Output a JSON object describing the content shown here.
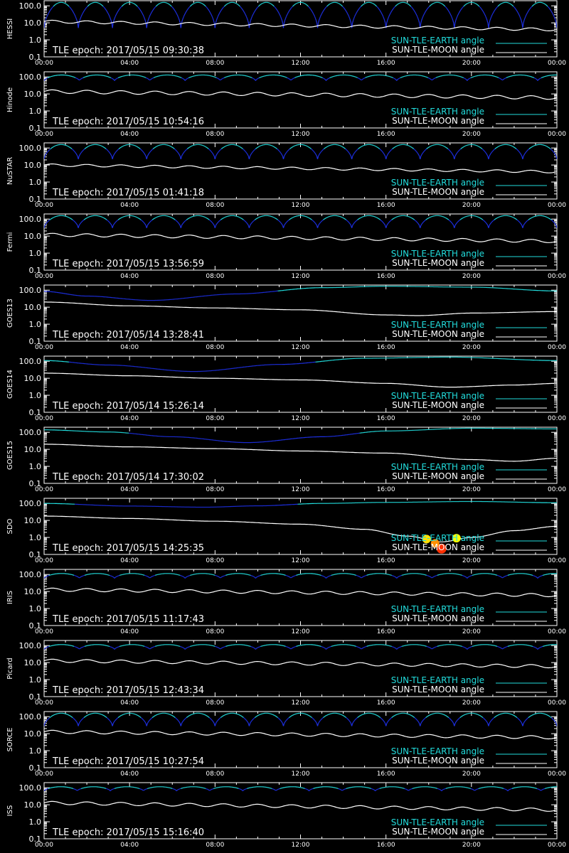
{
  "chart_data": [
    {
      "type": "line",
      "ylabel": "HESSI",
      "epoch": "TLE epoch: 2017/05/15 09:30:38",
      "earth": {
        "kind": "orbit",
        "period": 1.6,
        "min": 5,
        "max": 160
      },
      "moon": {
        "start": 12,
        "end": 4,
        "wobble": 0.08
      }
    },
    {
      "type": "line",
      "ylabel": "Hinode",
      "epoch": "TLE epoch: 2017/05/15 10:54:16",
      "earth": {
        "kind": "orbit",
        "period": 1.65,
        "min": 60,
        "max": 130
      },
      "moon": {
        "start": 14,
        "end": 6,
        "wobble": 0.1
      }
    },
    {
      "type": "line",
      "ylabel": "NuSTAR",
      "epoch": "TLE epoch: 2017/05/15 01:41:18",
      "earth": {
        "kind": "orbit",
        "period": 1.6,
        "min": 22,
        "max": 160
      },
      "moon": {
        "start": 10,
        "end": 4,
        "wobble": 0.07
      }
    },
    {
      "type": "line",
      "ylabel": "Fermi",
      "epoch": "TLE epoch: 2017/05/15 13:56:59",
      "earth": {
        "kind": "orbit",
        "period": 1.6,
        "min": 30,
        "max": 160
      },
      "moon": {
        "start": 12,
        "end": 5,
        "wobble": 0.09
      }
    },
    {
      "type": "line",
      "ylabel": "GOES13",
      "epoch": "TLE epoch: 2017/05/14 13:28:41",
      "earth": {
        "kind": "geo",
        "points": [
          [
            0,
            85
          ],
          [
            2,
            45
          ],
          [
            5,
            25
          ],
          [
            9,
            60
          ],
          [
            13,
            140
          ],
          [
            16,
            170
          ],
          [
            20,
            150
          ],
          [
            24,
            90
          ]
        ]
      },
      "moon": {
        "points": [
          [
            0,
            20
          ],
          [
            4,
            12
          ],
          [
            8,
            9
          ],
          [
            12,
            7
          ],
          [
            16,
            3.5
          ],
          [
            17.5,
            3.2
          ],
          [
            20,
            4.5
          ],
          [
            24,
            5.5
          ]
        ],
        "wobble": 0
      }
    },
    {
      "type": "line",
      "ylabel": "GOES14",
      "epoch": "TLE epoch: 2017/05/14 15:26:14",
      "earth": {
        "kind": "geo",
        "points": [
          [
            0,
            110
          ],
          [
            3,
            60
          ],
          [
            7,
            25
          ],
          [
            11,
            65
          ],
          [
            15,
            150
          ],
          [
            19,
            175
          ],
          [
            24,
            110
          ]
        ]
      },
      "moon": {
        "points": [
          [
            0,
            20
          ],
          [
            4,
            14
          ],
          [
            8,
            10
          ],
          [
            12,
            8
          ],
          [
            16,
            5
          ],
          [
            19,
            3
          ],
          [
            22,
            4
          ],
          [
            24,
            5
          ]
        ],
        "wobble": 0
      }
    },
    {
      "type": "line",
      "ylabel": "GOES15",
      "epoch": "TLE epoch: 2017/05/14 17:30:02",
      "earth": {
        "kind": "geo",
        "points": [
          [
            0,
            140
          ],
          [
            3,
            105
          ],
          [
            6,
            55
          ],
          [
            9.5,
            25
          ],
          [
            13,
            55
          ],
          [
            16,
            120
          ],
          [
            20,
            175
          ],
          [
            24,
            160
          ]
        ]
      },
      "moon": {
        "points": [
          [
            0,
            20
          ],
          [
            4,
            14
          ],
          [
            8,
            11
          ],
          [
            12,
            8
          ],
          [
            16,
            6
          ],
          [
            20,
            2.5
          ],
          [
            22,
            2
          ],
          [
            24,
            3
          ]
        ],
        "wobble": 0
      }
    },
    {
      "type": "line",
      "ylabel": "SDO",
      "epoch": "TLE epoch: 2017/05/15 14:25:35",
      "earth": {
        "kind": "geo",
        "points": [
          [
            0,
            100
          ],
          [
            4,
            70
          ],
          [
            7.5,
            60
          ],
          [
            10,
            72
          ],
          [
            13,
            100
          ],
          [
            16,
            115
          ],
          [
            20,
            130
          ],
          [
            24,
            110
          ]
        ]
      },
      "moon": {
        "points": [
          [
            0,
            18
          ],
          [
            4,
            13
          ],
          [
            8,
            9
          ],
          [
            12,
            6
          ],
          [
            15,
            3
          ],
          [
            17,
            1.2
          ],
          [
            18.6,
            0.55
          ],
          [
            20,
            1.0
          ],
          [
            22,
            2.5
          ],
          [
            24,
            4.5
          ]
        ],
        "wobble": 0
      },
      "highlight": [
        {
          "x": 18.6,
          "y": 0.22,
          "color": "#ff3000",
          "r": 7
        },
        {
          "x": 17.9,
          "y": 0.8,
          "color": "#ffe000",
          "r": 6
        },
        {
          "x": 19.3,
          "y": 0.9,
          "color": "#ffff00",
          "r": 6
        },
        {
          "x": 18.3,
          "y": 0.45,
          "color": "#ff9000",
          "r": 6
        }
      ]
    },
    {
      "type": "line",
      "ylabel": "IRIS",
      "epoch": "TLE epoch: 2017/05/15 11:17:43",
      "earth": {
        "kind": "orbit",
        "period": 1.65,
        "min": 60,
        "max": 115
      },
      "moon": {
        "start": 13,
        "end": 6,
        "wobble": 0.09
      }
    },
    {
      "type": "line",
      "ylabel": "Picard",
      "epoch": "TLE epoch: 2017/05/15 12:43:34",
      "earth": {
        "kind": "orbit",
        "period": 1.65,
        "min": 60,
        "max": 115
      },
      "moon": {
        "start": 13,
        "end": 6,
        "wobble": 0.09
      }
    },
    {
      "type": "line",
      "ylabel": "SORCE",
      "epoch": "TLE epoch: 2017/05/15 10:27:54",
      "earth": {
        "kind": "orbit",
        "period": 1.6,
        "min": 28,
        "max": 160
      },
      "moon": {
        "start": 13,
        "end": 6,
        "wobble": 0.09
      }
    },
    {
      "type": "line",
      "ylabel": "ISS",
      "epoch": "TLE epoch: 2017/05/15 15:16:40",
      "earth": {
        "kind": "orbit",
        "period": 1.55,
        "min": 65,
        "max": 115
      },
      "moon": {
        "start": 13,
        "end": 5,
        "wobble": 0.09
      }
    }
  ],
  "common": {
    "xticks": [
      "00:00",
      "04:00",
      "08:00",
      "12:00",
      "16:00",
      "20:00",
      "00:00"
    ],
    "yticks": [
      "100.0",
      "10.0",
      "1.0",
      "0.1"
    ],
    "xlim": [
      0,
      24
    ],
    "ylim": [
      0.1,
      200
    ],
    "yscale": "log",
    "legend_earth": "SUN-TLE-EARTH angle",
    "legend_moon": "SUN-TLE-MOON angle",
    "colors": {
      "background": "#000000",
      "axes": "#ffffff",
      "earth_light": "#22dddd",
      "earth_dark": "#1d2fe0",
      "moon": "#ffffff"
    }
  }
}
